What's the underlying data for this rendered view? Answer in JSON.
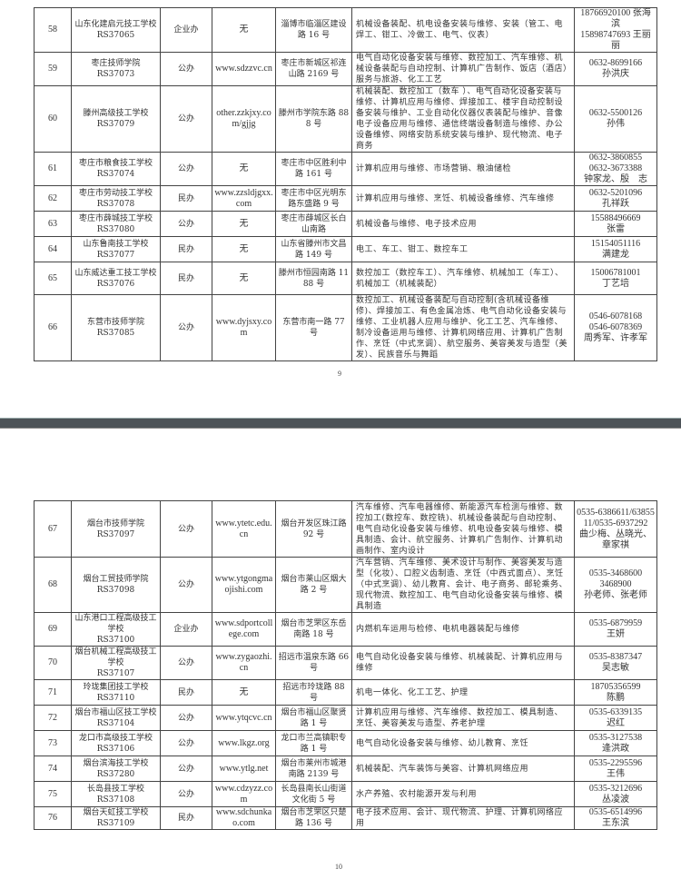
{
  "page1": {
    "page_number": "9",
    "rows": [
      {
        "no": "58",
        "name": "山东化建启元技工学校",
        "code": "RS37065",
        "type": "企业办",
        "site": "无",
        "addr": "淄博市临淄区建设路 16 号",
        "majors": "机械设备装配、机电设备安装与维修、安装（管工、电焊工、钳工、冷做工、电气、仪表）",
        "contact": [
          "18766920100 张海滨",
          "15898747693 王丽丽"
        ]
      },
      {
        "no": "59",
        "name": "枣庄技师学院",
        "code": "RS37073",
        "type": "公办",
        "site": "www.sdzzvc.cn",
        "addr": "枣庄市新城区祁连山路 2169 号",
        "majors": "电气自动化设备安装与维修、数控加工、汽车维修、机械设备装配与自动控制、计算机广告制作、饭店（酒店）服务与旅游、化工工艺",
        "contact": [
          "0632-8699166",
          "孙洪庆"
        ]
      },
      {
        "no": "60",
        "name": "滕州高级技工学校",
        "code": "RS37079",
        "type": "公办",
        "site": "other.zzkjxy.com/gjjg",
        "addr": "滕州市学院东路 888 号",
        "majors": "机械装配、数控加工（数车 ）、电气自动化设备安装与维修、计算机应用与维修、焊接加工、楼宇自动控制设备安装与维护、工业自动化仪器仪表装配与维护、音像电子设备应用与维修、通信终端设备制造与维修、办公设备维修、网络安防系统安装与维护、现代物流、电子商务",
        "contact": [
          "0632-5500126",
          "孙伟"
        ]
      },
      {
        "no": "61",
        "name": "枣庄市粮食技工学校",
        "code": "RS37074",
        "type": "公办",
        "site": "无",
        "addr": "枣庄市中区胜利中路 161 号",
        "majors": "计算机应用与维修、市场营销、粮油储检",
        "contact": [
          "0632-3860855",
          "0632-3673388",
          "钟家龙、殷　志"
        ]
      },
      {
        "no": "62",
        "name": "枣庄市劳动技工学校",
        "code": "RS37078",
        "type": "民办",
        "site": "www.zzsldjgxx.com",
        "addr": "枣庄市中区光明东路东盛路 9 号",
        "majors": "计算机应用与维修、烹饪、机械设备维修、汽车维修",
        "contact": [
          "0632-5201096",
          "孔祥跃"
        ]
      },
      {
        "no": "63",
        "name": "枣庄市薛城技工学校",
        "code": "RS37080",
        "type": "公办",
        "site": "无",
        "addr": "枣庄市薛城区长白山南路",
        "majors": "机械设备与维修、电子技术应用",
        "contact": [
          "15588496669",
          "张雷"
        ]
      },
      {
        "no": "64",
        "name": "山东鲁南技工学校",
        "code": "RS37077",
        "type": "民办",
        "site": "无",
        "addr": "山东省滕州市文昌路 149 号",
        "majors": "电工、车工、钳工、数控车工",
        "contact": [
          "15154051116",
          "满建龙"
        ]
      },
      {
        "no": "65",
        "name": "山东威达重工技工学校",
        "code": "RS37076",
        "type": "民办",
        "site": "无",
        "addr": "滕州市恒园南路 1188 号",
        "majors": "数控加工（数控车工）、汽车维修、机械加工（车工）、机械加工（机械装配）",
        "contact": [
          "15006781001",
          "丁艺培"
        ]
      },
      {
        "no": "66",
        "name": "东营市技师学院",
        "code": "RS37085",
        "type": "公办",
        "site": "www.dyjsxy.com",
        "addr": "东营市南一路 77 号",
        "majors": "数控加工、机械设备装配与自动控制(含机械设备维修)、焊接加工、有色金属冶炼、电气自动化设备安装与维修、工业机器人应用与维护、化工工艺、汽车维修、制冷设备运用与维修、计算机网络应用、计算机广告制作、烹饪（中式烹调）、航空服务、美容美发与造型（美发）、民族音乐与舞蹈",
        "contact": [
          "0546-6078168",
          "0546-6078369",
          "周秀军、许孝军"
        ]
      }
    ]
  },
  "page2": {
    "page_number": "10",
    "rows": [
      {
        "no": "67",
        "name": "烟台市技师学院",
        "code": "RS37097",
        "type": "公办",
        "site": "www.ytetc.edu.cn",
        "addr": "烟台开发区珠江路 92 号",
        "majors": "汽车维修、汽车电器维修、新能源汽车检测与维修、数控加工(数控车、数控铣)、机械设备装配与自动控制、电气自动化设备安装与维修、机电设备安装与维修、模具制造、会计、航空服务、计算机广告制作、计算机动画制作、室内设计",
        "contact": [
          "0535-6386611/6385511/0535-6937292",
          "曲少梅、丛晓光、章家祺"
        ]
      },
      {
        "no": "68",
        "name": "烟台工贸技师学院",
        "code": "RS37098",
        "type": "公办",
        "site": "www.ytgongmaojishi.com",
        "addr": "烟台市莱山区烟大路 2 号",
        "majors": "汽车营销、汽车维修、美术设计与制作、美容美发与造型（化妆）、口腔义齿制造、烹饪（中西式面点）、烹饪（中式烹调）、幼儿教育、会计、电子商务、邮轮乘务、现代物流、数控加工、电气自动化设备安装与维修、模具制造",
        "contact": [
          "0535-3468600",
          "3468900",
          "孙老师、张老师"
        ]
      },
      {
        "no": "69",
        "name": "山东港口工程高级技工学校",
        "code": "RS37100",
        "type": "企业办",
        "site": "www.sdportcollege.com",
        "addr": "烟台市芝罘区东岳南路 18 号",
        "majors": "内燃机车运用与检修、电机电器装配与维修",
        "contact": [
          "0535-6879959",
          "王妍"
        ]
      },
      {
        "no": "70",
        "name": "烟台机械工程高级技工学校",
        "code": "RS37107",
        "type": "公办",
        "site": "www.zygaozhi.cn",
        "addr": "招远市温泉东路 66 号",
        "majors": "电气自动化设备安装与维修、机械装配、计算机应用与维修",
        "contact": [
          "0535-8387347",
          "吴志敏"
        ]
      },
      {
        "no": "71",
        "name": "玲珑集团技工学校",
        "code": "RS37110",
        "type": "民办",
        "site": "无",
        "addr": "招远市玲珑路 88 号",
        "majors": "机电一体化、化工工艺、护理",
        "contact": [
          "18705356599",
          "陈鹏"
        ]
      },
      {
        "no": "72",
        "name": "烟台市福山区技工学校",
        "code": "RS37104",
        "type": "公办",
        "site": "www.ytqcvc.cn",
        "addr": "烟台市福山区聚贤路 1 号",
        "majors": "计算机应用与维修、汽车维修、数控加工、模具制造、烹饪、美容美发与造型、养老护理",
        "contact": [
          "0535-6339135",
          "迟红"
        ]
      },
      {
        "no": "73",
        "name": "龙口市高级技工学校",
        "code": "RS37106",
        "type": "公办",
        "site": "www.lkgz.org",
        "addr": "龙口市兰高镇职专路 1 号",
        "majors": "电气自动化设备安装与维修、幼儿教育、烹饪",
        "contact": [
          "0535-3127538",
          "逄洪政"
        ]
      },
      {
        "no": "74",
        "name": "烟台滨海技工学校",
        "code": "RS37280",
        "type": "公办",
        "site": "www.ytlg.net",
        "addr": "烟台市莱州市城港南路 2139 号",
        "majors": "机械装配、汽车装饰与美容、计算机网络应用",
        "contact": [
          "0535-2295596",
          "王伟"
        ]
      },
      {
        "no": "75",
        "name": "长岛县技工学校",
        "code": "RS37108",
        "type": "公办",
        "site": "www.cdzyzz.com",
        "addr": "长岛县南长山街道文化街 5 号",
        "majors": "水产养殖、农村能源开发与利用",
        "contact": [
          "0535-3212696",
          "丛凌波"
        ]
      },
      {
        "no": "76",
        "name": "烟台天虹技工学校",
        "code": "RS37109",
        "type": "民办",
        "site": "www.sdchunkao.com",
        "addr": "烟台市芝罘区只楚路 136 号",
        "majors": "电子技术应用、会计、现代物流、护理、计算机网络应用",
        "contact": [
          "0535-6514996",
          "王东滨"
        ]
      }
    ]
  }
}
